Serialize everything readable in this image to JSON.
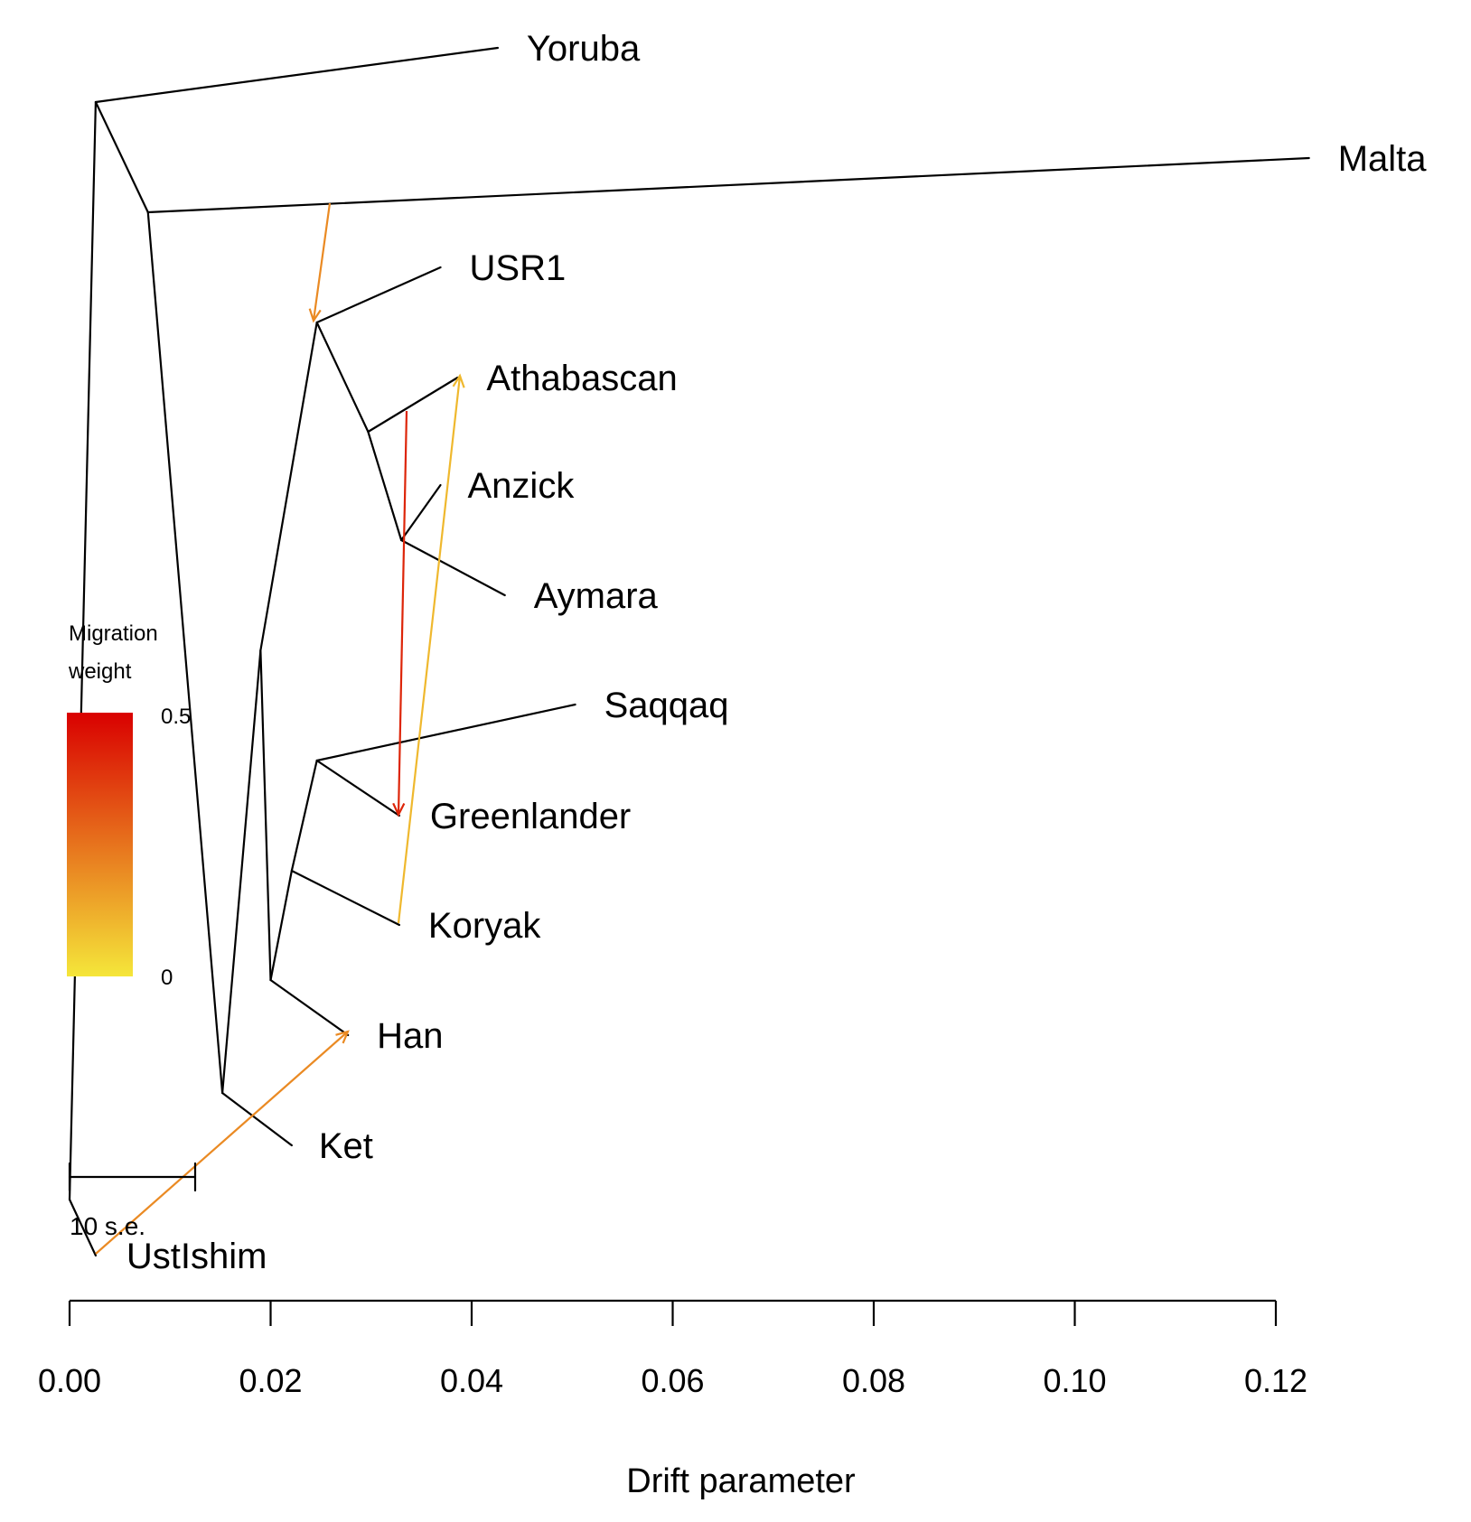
{
  "chart_data": {
    "type": "tree",
    "xlabel": "Drift parameter",
    "xlim": [
      0,
      0.12
    ],
    "x_ticks": [
      0.0,
      0.02,
      0.04,
      0.06,
      0.08,
      0.1,
      0.12
    ],
    "x_tick_labels": [
      "0.00",
      "0.02",
      "0.04",
      "0.06",
      "0.08",
      "0.10",
      "0.12"
    ],
    "tips": [
      "Yoruba",
      "Malta",
      "USR1",
      "Athabascan",
      "Anzick",
      "Aymara",
      "Saqqaq",
      "Greenlander",
      "Koryak",
      "Han",
      "Ket",
      "UstIshim"
    ],
    "nodes": {
      "root": 0.0,
      "n_yoruba_rest": 0.0026,
      "n_malta_rest": 0.0078,
      "n_ket_rest": 0.0152,
      "n_beringia": 0.019,
      "n_usr1_anc": 0.0246,
      "n_amer_anc": 0.0297,
      "n_south_amer": 0.033,
      "n_asia": 0.02,
      "n_koryak_anc": 0.0221,
      "n_saqqaq_anc": 0.0246
    },
    "branches": [
      {
        "from": "root",
        "to": "n_yoruba_rest"
      },
      {
        "from": "root",
        "to": "UstIshim"
      },
      {
        "from": "n_yoruba_rest",
        "to": "Yoruba"
      },
      {
        "from": "n_yoruba_rest",
        "to": "n_malta_rest"
      },
      {
        "from": "n_malta_rest",
        "to": "Malta"
      },
      {
        "from": "n_malta_rest",
        "to": "n_ket_rest"
      },
      {
        "from": "n_ket_rest",
        "to": "Ket"
      },
      {
        "from": "n_ket_rest",
        "to": "n_beringia"
      },
      {
        "from": "n_beringia",
        "to": "n_usr1_anc"
      },
      {
        "from": "n_beringia",
        "to": "n_asia"
      },
      {
        "from": "n_usr1_anc",
        "to": "USR1"
      },
      {
        "from": "n_usr1_anc",
        "to": "n_amer_anc"
      },
      {
        "from": "n_amer_anc",
        "to": "Athabascan"
      },
      {
        "from": "n_amer_anc",
        "to": "n_south_amer"
      },
      {
        "from": "n_south_amer",
        "to": "Anzick"
      },
      {
        "from": "n_south_amer",
        "to": "Aymara"
      },
      {
        "from": "n_asia",
        "to": "Han"
      },
      {
        "from": "n_asia",
        "to": "n_koryak_anc"
      },
      {
        "from": "n_koryak_anc",
        "to": "Koryak"
      },
      {
        "from": "n_koryak_anc",
        "to": "n_saqqaq_anc"
      },
      {
        "from": "n_saqqaq_anc",
        "to": "Saqqaq"
      },
      {
        "from": "n_saqqaq_anc",
        "to": "Greenlander"
      }
    ],
    "tip_drift": {
      "Yoruba": 0.0426,
      "Malta": 0.1233,
      "USR1": 0.0369,
      "Athabascan": 0.0386,
      "Anzick": 0.0369,
      "Aymara": 0.0433,
      "Saqqaq": 0.0503,
      "Greenlander": 0.0328,
      "Koryak": 0.0328,
      "Han": 0.0277,
      "Ket": 0.0221,
      "UstIshim": 0.0026
    },
    "migrations": [
      {
        "from": "Malta edge",
        "to": "USR1 ancestor",
        "weight": 0.2
      },
      {
        "from": "Athabascan edge",
        "to": "Greenlander",
        "weight": 0.42
      },
      {
        "from": "Koryak",
        "to": "Athabascan",
        "weight": 0.1
      },
      {
        "from": "UstIshim",
        "to": "Han",
        "weight": 0.2
      }
    ],
    "legend": {
      "title_line1": "Migration",
      "title_line2": "weight",
      "max_label": "0.5",
      "min_label": "0",
      "min": 0,
      "max": 0.5,
      "color_low": "#f5e63a",
      "color_high": "#d90000"
    },
    "scale_bar": {
      "label": "10 s.e.",
      "length_drift": 0.0125
    }
  }
}
